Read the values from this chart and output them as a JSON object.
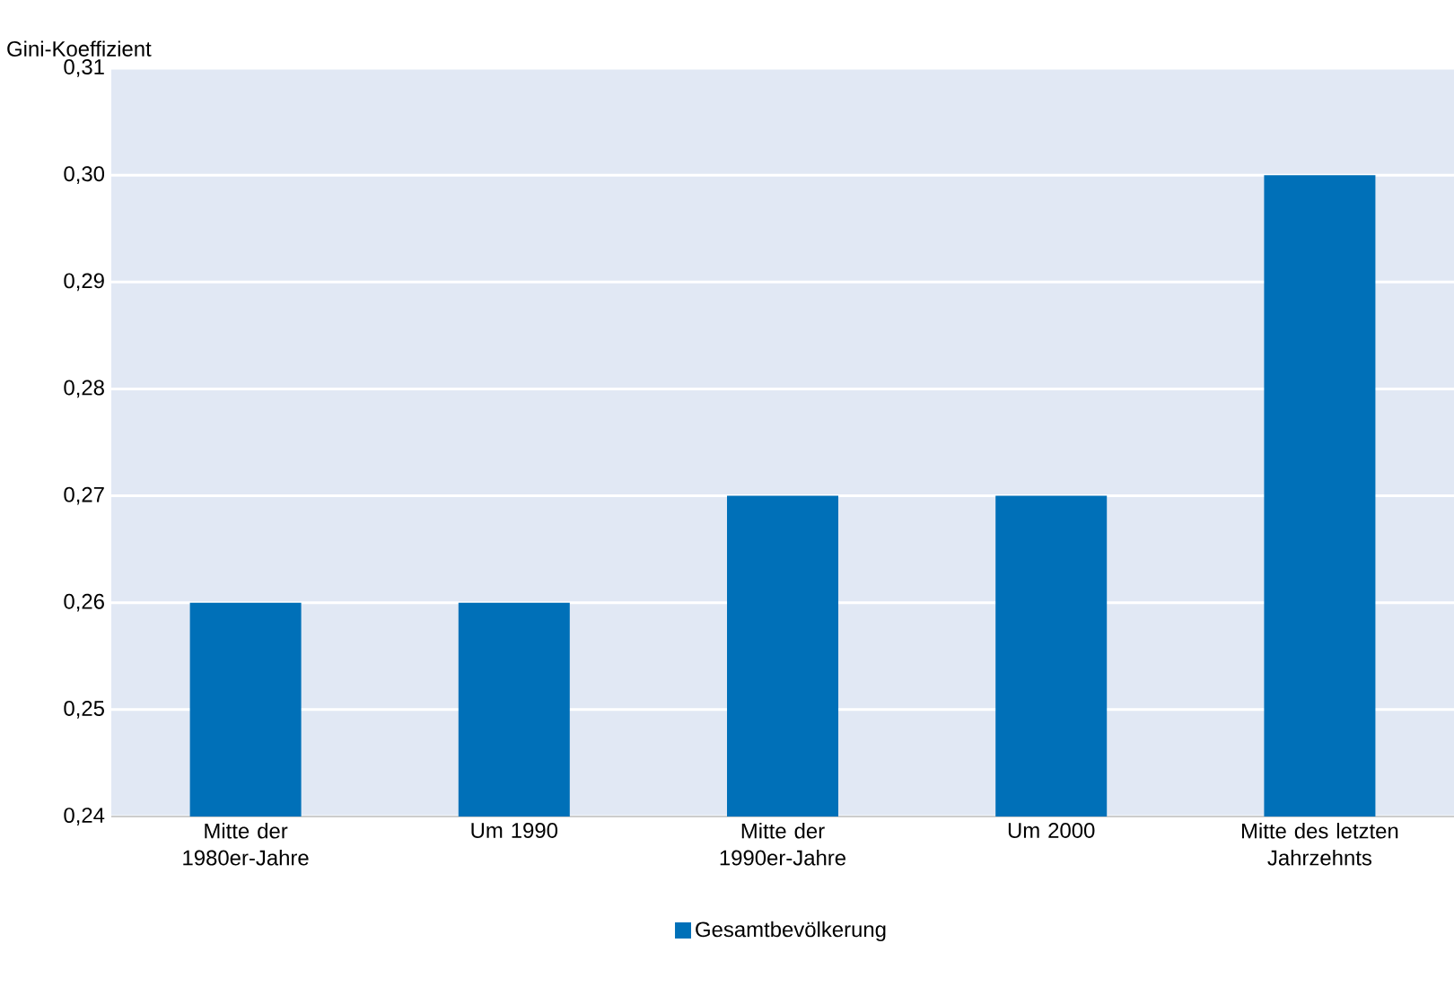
{
  "chart_data": {
    "type": "bar",
    "ylabel": "Gini-Koeffizient",
    "categories": [
      "Mitte der 1980er-Jahre",
      "Um 1990",
      "Mitte der 1990er-Jahre",
      "Um 2000",
      "Mitte des letzten Jahrzehnts"
    ],
    "series": [
      {
        "name": "Gesamtbevölkerung",
        "color": "#0070b8",
        "values": [
          0.26,
          0.26,
          0.27,
          0.27,
          0.3
        ]
      }
    ],
    "ylim": [
      0.24,
      0.31
    ],
    "yticks": [
      {
        "value": 0.24,
        "label": "0,24"
      },
      {
        "value": 0.25,
        "label": "0,25"
      },
      {
        "value": 0.26,
        "label": "0,26"
      },
      {
        "value": 0.27,
        "label": "0,27"
      },
      {
        "value": 0.28,
        "label": "0,28"
      },
      {
        "value": 0.29,
        "label": "0,29"
      },
      {
        "value": 0.3,
        "label": "0,30"
      },
      {
        "value": 0.31,
        "label": "0,31"
      }
    ],
    "grid": "y",
    "legend": "bottom"
  }
}
